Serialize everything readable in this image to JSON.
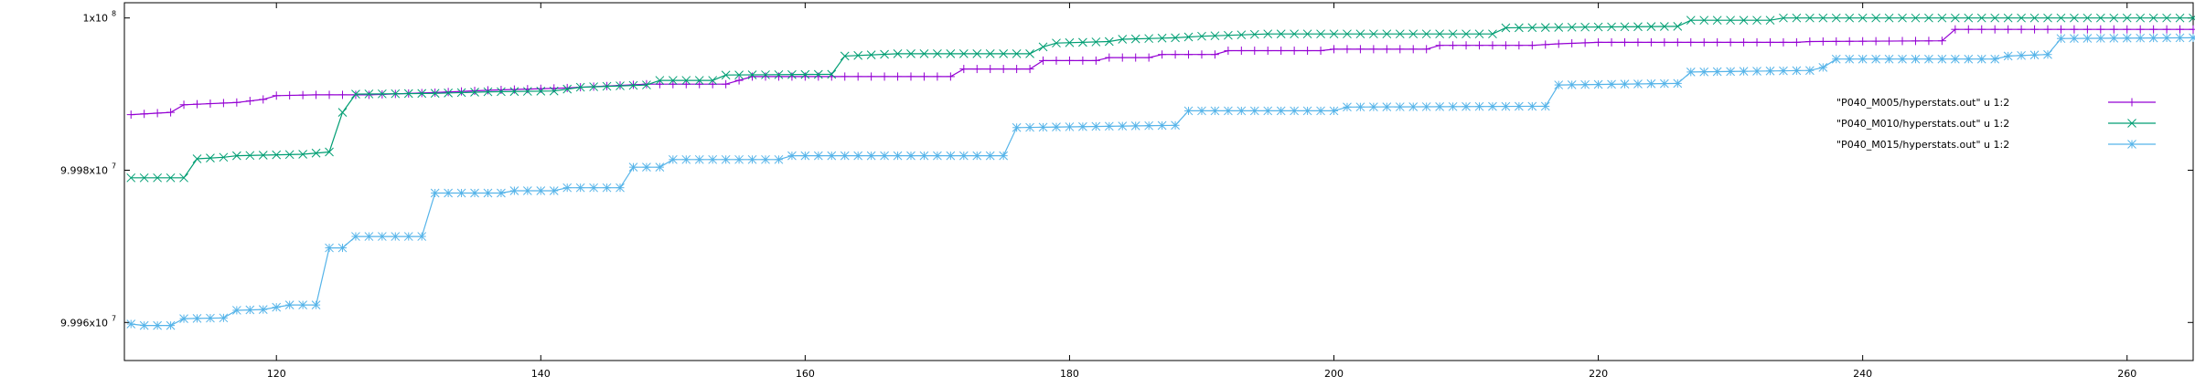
{
  "chart_data": {
    "type": "line",
    "title": "",
    "xlabel": "",
    "ylabel": "",
    "xlim": [
      108.5,
      265
    ],
    "ylim": [
      99955000,
      100002000
    ],
    "x_ticks": [
      120,
      140,
      160,
      180,
      200,
      220,
      240,
      260
    ],
    "y_ticks": [
      {
        "value": 100000000,
        "mantissa": "1x10",
        "exp": "8"
      },
      {
        "value": 99980000,
        "mantissa": "9.998x10",
        "exp": "7"
      },
      {
        "value": 99960000,
        "mantissa": "9.996x10",
        "exp": "7"
      }
    ],
    "legend_position": "right",
    "grid": false,
    "series": [
      {
        "name": "\"P040_M005/hyperstats.out\" u 1:2",
        "color": "#9400d3",
        "marker": "plus",
        "points": [
          [
            109,
            99987300
          ],
          [
            112,
            99987600
          ],
          [
            113,
            99988600
          ],
          [
            117,
            99988900
          ],
          [
            119,
            99989300
          ],
          [
            120,
            99989800
          ],
          [
            123,
            99989900
          ],
          [
            127,
            99989900
          ],
          [
            132,
            99990200
          ],
          [
            136,
            99990500
          ],
          [
            142,
            99990800
          ],
          [
            143,
            99990900
          ],
          [
            148,
            99991300
          ],
          [
            154,
            99991300
          ],
          [
            156,
            99992300
          ],
          [
            171,
            99992300
          ],
          [
            172,
            99993300
          ],
          [
            177,
            99993300
          ],
          [
            178,
            99994400
          ],
          [
            182,
            99994400
          ],
          [
            183,
            99994800
          ],
          [
            186,
            99994800
          ],
          [
            187,
            99995200
          ],
          [
            191,
            99995200
          ],
          [
            192,
            99995700
          ],
          [
            199,
            99995700
          ],
          [
            200,
            99995900
          ],
          [
            207,
            99995900
          ],
          [
            208,
            99996400
          ],
          [
            215,
            99996400
          ],
          [
            217,
            99996600
          ],
          [
            220,
            99996800
          ],
          [
            235,
            99996800
          ],
          [
            236,
            99996900
          ],
          [
            246,
            99997000
          ],
          [
            247,
            99998500
          ],
          [
            265,
            99998500
          ]
        ]
      },
      {
        "name": "\"P040_M010/hyperstats.out\" u 1:2",
        "color": "#009e73",
        "marker": "x",
        "points": [
          [
            109,
            99979000
          ],
          [
            113,
            99979000
          ],
          [
            114,
            99981500
          ],
          [
            116,
            99981700
          ],
          [
            117,
            99981900
          ],
          [
            122,
            99982100
          ],
          [
            124,
            99982400
          ],
          [
            125,
            99987600
          ],
          [
            126,
            99990000
          ],
          [
            132,
            99990100
          ],
          [
            136,
            99990300
          ],
          [
            141,
            99990400
          ],
          [
            143,
            99990900
          ],
          [
            148,
            99991200
          ],
          [
            149,
            99991800
          ],
          [
            153,
            99991800
          ],
          [
            154,
            99992500
          ],
          [
            162,
            99992600
          ],
          [
            163,
            99995000
          ],
          [
            167,
            99995300
          ],
          [
            177,
            99995300
          ],
          [
            178,
            99996200
          ],
          [
            179,
            99996700
          ],
          [
            183,
            99996900
          ],
          [
            184,
            99997200
          ],
          [
            188,
            99997400
          ],
          [
            190,
            99997600
          ],
          [
            195,
            99997900
          ],
          [
            212,
            99997900
          ],
          [
            213,
            99998700
          ],
          [
            219,
            99998800
          ],
          [
            226,
            99998900
          ],
          [
            227,
            99999700
          ],
          [
            233,
            99999700
          ],
          [
            234,
            100000000
          ],
          [
            265,
            100000000
          ]
        ]
      },
      {
        "name": "\"P040_M015/hyperstats.out\" u 1:2",
        "color": "#56b4e9",
        "marker": "star",
        "points": [
          [
            109,
            99959800
          ],
          [
            110,
            99959600
          ],
          [
            112,
            99959600
          ],
          [
            113,
            99960500
          ],
          [
            116,
            99960600
          ],
          [
            117,
            99961600
          ],
          [
            119,
            99961700
          ],
          [
            121,
            99962300
          ],
          [
            123,
            99962300
          ],
          [
            124,
            99969800
          ],
          [
            125,
            99969800
          ],
          [
            126,
            99971300
          ],
          [
            131,
            99971300
          ],
          [
            132,
            99977000
          ],
          [
            137,
            99977000
          ],
          [
            138,
            99977300
          ],
          [
            141,
            99977300
          ],
          [
            142,
            99977700
          ],
          [
            146,
            99977700
          ],
          [
            147,
            99980400
          ],
          [
            149,
            99980400
          ],
          [
            150,
            99981400
          ],
          [
            158,
            99981400
          ],
          [
            159,
            99981900
          ],
          [
            175,
            99981900
          ],
          [
            176,
            99985600
          ],
          [
            188,
            99985900
          ],
          [
            189,
            99987800
          ],
          [
            200,
            99987800
          ],
          [
            201,
            99988300
          ],
          [
            216,
            99988400
          ],
          [
            217,
            99991200
          ],
          [
            226,
            99991400
          ],
          [
            227,
            99992900
          ],
          [
            236,
            99993100
          ],
          [
            237,
            99993500
          ],
          [
            238,
            99994600
          ],
          [
            250,
            99994600
          ],
          [
            251,
            99995000
          ],
          [
            254,
            99995200
          ],
          [
            255,
            99997300
          ],
          [
            265,
            99997400
          ]
        ]
      }
    ]
  }
}
